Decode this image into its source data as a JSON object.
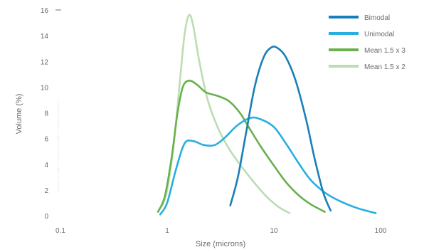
{
  "chart_data": {
    "type": "line",
    "title": "",
    "xlabel": "Size (microns)",
    "ylabel": "Volume (%)",
    "x_scale": "log",
    "xlim": [
      0.1,
      1000
    ],
    "ylim": [
      0,
      16
    ],
    "grid": false,
    "legend_position": "top-right",
    "x_ticks": [
      {
        "value": 0.1,
        "label": "0.1"
      },
      {
        "value": 1,
        "label": "1"
      },
      {
        "value": 10,
        "label": "10"
      },
      {
        "value": 100,
        "label": "100"
      }
    ],
    "y_ticks": [
      {
        "value": 0,
        "label": "0"
      },
      {
        "value": 2,
        "label": "2"
      },
      {
        "value": 4,
        "label": "4"
      },
      {
        "value": 6,
        "label": "6"
      },
      {
        "value": 8,
        "label": "8"
      },
      {
        "value": 10,
        "label": "10"
      },
      {
        "value": 12,
        "label": "12"
      },
      {
        "value": 14,
        "label": "14"
      },
      {
        "value": 16,
        "label": "16"
      }
    ],
    "series": [
      {
        "name": "Bimodal",
        "color": "#1a7fb8",
        "points": [
          [
            3.9,
            0.8
          ],
          [
            4.6,
            3.0
          ],
          [
            5.5,
            6.5
          ],
          [
            6.6,
            10.0
          ],
          [
            8.0,
            12.3
          ],
          [
            9.5,
            13.1
          ],
          [
            11.0,
            13.0
          ],
          [
            13.0,
            12.3
          ],
          [
            16.0,
            10.5
          ],
          [
            20.0,
            7.5
          ],
          [
            24.0,
            4.5
          ],
          [
            29.0,
            1.8
          ],
          [
            34.0,
            0.4
          ]
        ]
      },
      {
        "name": "Unimodal",
        "color": "#29aee0",
        "points": [
          [
            0.86,
            0.1
          ],
          [
            1.0,
            1.0
          ],
          [
            1.2,
            3.5
          ],
          [
            1.45,
            5.6
          ],
          [
            1.75,
            5.8
          ],
          [
            2.2,
            5.5
          ],
          [
            2.8,
            5.5
          ],
          [
            3.5,
            6.1
          ],
          [
            4.5,
            7.0
          ],
          [
            6.0,
            7.6
          ],
          [
            7.5,
            7.5
          ],
          [
            10.0,
            6.9
          ],
          [
            13.0,
            5.6
          ],
          [
            17.0,
            4.1
          ],
          [
            22.0,
            2.8
          ],
          [
            30.0,
            1.8
          ],
          [
            40.0,
            1.2
          ],
          [
            60.0,
            0.6
          ],
          [
            90.0,
            0.2
          ]
        ]
      },
      {
        "name": "Mean 1.5 x 3",
        "color": "#6ab04c",
        "points": [
          [
            0.82,
            0.3
          ],
          [
            0.95,
            1.5
          ],
          [
            1.1,
            4.5
          ],
          [
            1.25,
            8.0
          ],
          [
            1.4,
            10.0
          ],
          [
            1.6,
            10.5
          ],
          [
            1.9,
            10.2
          ],
          [
            2.3,
            9.6
          ],
          [
            3.0,
            9.3
          ],
          [
            3.8,
            8.9
          ],
          [
            4.8,
            8.0
          ],
          [
            6.0,
            6.7
          ],
          [
            7.5,
            5.4
          ],
          [
            10.0,
            3.9
          ],
          [
            13.0,
            2.6
          ],
          [
            17.0,
            1.6
          ],
          [
            22.0,
            0.9
          ],
          [
            30.0,
            0.3
          ]
        ]
      },
      {
        "name": "Mean 1.5 x 2",
        "color": "#bcddb2",
        "points": [
          [
            0.9,
            0.8
          ],
          [
            1.0,
            2.0
          ],
          [
            1.15,
            5.5
          ],
          [
            1.3,
            10.0
          ],
          [
            1.45,
            14.0
          ],
          [
            1.6,
            15.6
          ],
          [
            1.75,
            14.8
          ],
          [
            2.0,
            12.0
          ],
          [
            2.4,
            9.0
          ],
          [
            3.0,
            6.8
          ],
          [
            3.8,
            5.2
          ],
          [
            5.0,
            3.8
          ],
          [
            6.5,
            2.6
          ],
          [
            8.5,
            1.5
          ],
          [
            11.0,
            0.7
          ],
          [
            14.0,
            0.2
          ]
        ]
      }
    ]
  }
}
